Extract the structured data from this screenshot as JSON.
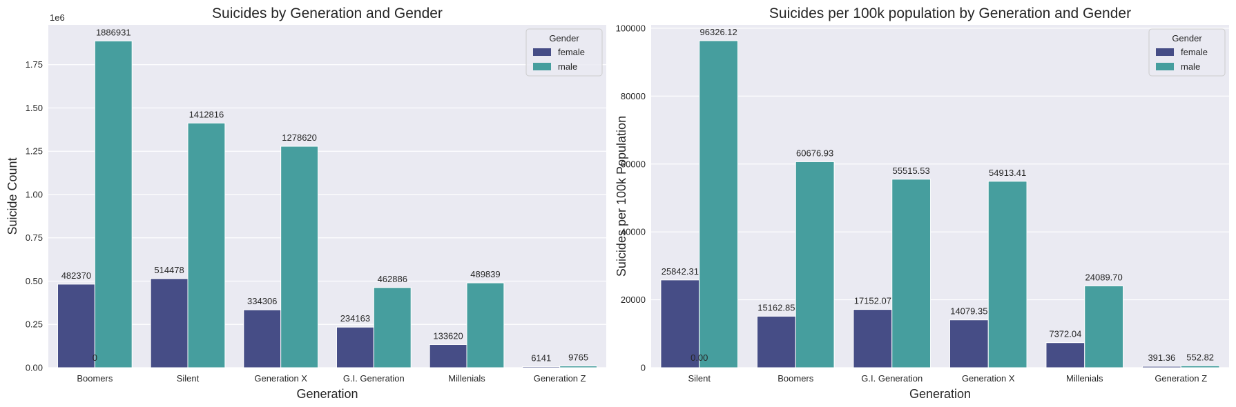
{
  "colors": {
    "plot_bg": "#eaeaf2",
    "grid": "#ffffff",
    "female": "#464d86",
    "male": "#469e9e",
    "text": "#262626"
  },
  "chart_data": [
    {
      "type": "bar",
      "title": "Suicides by Generation and Gender",
      "xlabel": "Generation",
      "ylabel": "Suicide Count",
      "scale_note": "1e6",
      "ylim": [
        0,
        1980000
      ],
      "yticks": [
        0,
        250000,
        500000,
        750000,
        1000000,
        1250000,
        1500000,
        1750000
      ],
      "ytick_labels": [
        "0.00",
        "0.25",
        "0.50",
        "0.75",
        "1.00",
        "1.25",
        "1.50",
        "1.75"
      ],
      "categories": [
        "Boomers",
        "Silent",
        "Generation X",
        "G.I. Generation",
        "Millenials",
        "Generation Z"
      ],
      "legend": {
        "title": "Gender",
        "position": "top-right"
      },
      "series": [
        {
          "name": "female",
          "values": [
            482370,
            514478,
            334306,
            234163,
            133620,
            6141
          ],
          "labels": [
            "482370",
            "514478",
            "334306",
            "234163",
            "133620",
            "6141"
          ]
        },
        {
          "name": "male",
          "values": [
            1886931,
            1412816,
            1278620,
            462886,
            489839,
            9765
          ],
          "labels": [
            "1886931",
            "1412816",
            "1278620",
            "462886",
            "489839",
            "9765"
          ]
        }
      ],
      "extra_annotation": "0",
      "grid": true
    },
    {
      "type": "bar",
      "title": "Suicides per 100k population by Generation and Gender",
      "xlabel": "Generation",
      "ylabel": "Suicides per 100k Population",
      "ylim": [
        0,
        101000
      ],
      "yticks": [
        0,
        20000,
        40000,
        60000,
        80000,
        100000
      ],
      "ytick_labels": [
        "0",
        "20000",
        "40000",
        "60000",
        "80000",
        "100000"
      ],
      "categories": [
        "Silent",
        "Boomers",
        "G.I. Generation",
        "Generation X",
        "Millenials",
        "Generation Z"
      ],
      "legend": {
        "title": "Gender",
        "position": "top-right"
      },
      "series": [
        {
          "name": "female",
          "values": [
            25842.31,
            15162.85,
            17152.07,
            14079.35,
            7372.04,
            391.36
          ],
          "labels": [
            "25842.31",
            "15162.85",
            "17152.07",
            "14079.35",
            "7372.04",
            "391.36"
          ]
        },
        {
          "name": "male",
          "values": [
            96326.12,
            60676.93,
            55515.53,
            54913.41,
            24089.7,
            552.82
          ],
          "labels": [
            "96326.12",
            "60676.93",
            "55515.53",
            "54913.41",
            "24089.70",
            "552.82"
          ]
        }
      ],
      "extra_annotation": "0.00",
      "grid": true
    }
  ]
}
